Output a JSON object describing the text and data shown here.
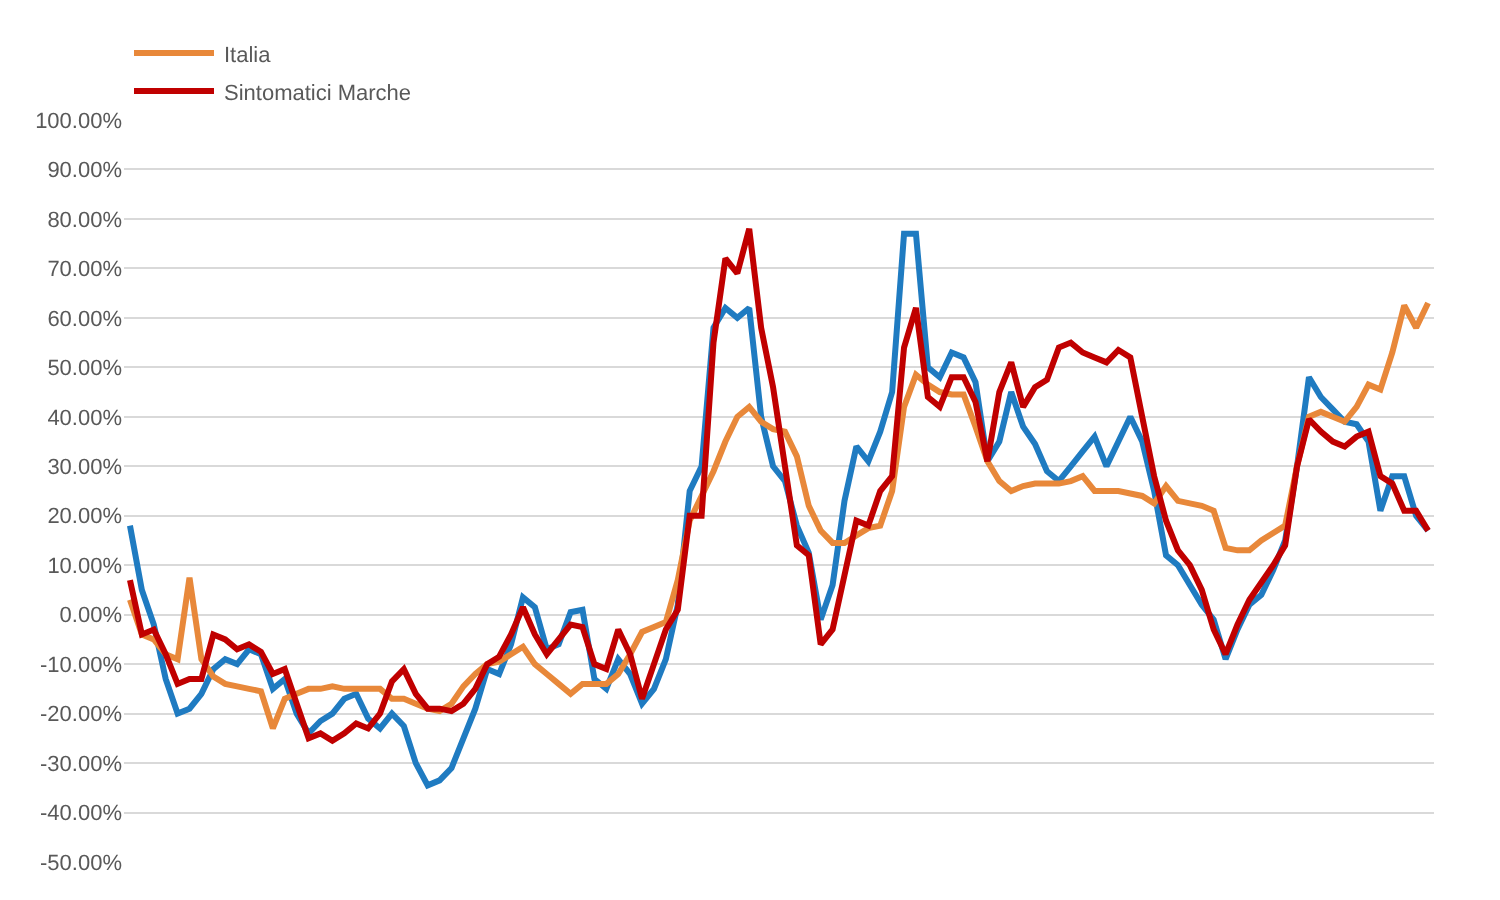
{
  "chart_data": {
    "type": "line",
    "categories": [
      null,
      null,
      null,
      null,
      null,
      null,
      null,
      null,
      null,
      null,
      null,
      null,
      null,
      null,
      null,
      null,
      null,
      null,
      null,
      null,
      null,
      null,
      null,
      null,
      null,
      null,
      null,
      null,
      null,
      null,
      null,
      null,
      null,
      null,
      null,
      null,
      null,
      null,
      null,
      null,
      null,
      null,
      null,
      null,
      null,
      null,
      null,
      null,
      null,
      null,
      null,
      null,
      null,
      null,
      null,
      null,
      null,
      null,
      null,
      null,
      null,
      null,
      null,
      null,
      null,
      null,
      null,
      null,
      null,
      null,
      null,
      null,
      null,
      null,
      null,
      null,
      null,
      null,
      null,
      null,
      null,
      null,
      null,
      null,
      null,
      null,
      null,
      null,
      null,
      null,
      null,
      null,
      null,
      null,
      null,
      null,
      null,
      null,
      null,
      null,
      null,
      null,
      null,
      null,
      null,
      null,
      null,
      null,
      null,
      null
    ],
    "series": [
      {
        "color": "#1f7bc1",
        "values": [
          18,
          5,
          -2,
          -13,
          -20,
          -19,
          -16,
          -11,
          -9,
          -10,
          -7,
          -8,
          -15,
          -13,
          -20,
          -24,
          -21.5,
          -20,
          -17,
          -16,
          -21,
          -23,
          -20,
          -22.5,
          -30,
          -34.5,
          -33.5,
          -31,
          -25,
          -19,
          -11,
          -12,
          -6,
          3.5,
          1.5,
          -7,
          -6,
          0.5,
          1,
          -13,
          -15,
          -9,
          -12,
          -18,
          -15,
          -9,
          2,
          25,
          30,
          58,
          62,
          60,
          62,
          40,
          30,
          27,
          18,
          12.5,
          -1,
          6,
          23,
          34,
          31,
          37,
          45,
          77,
          77,
          50,
          48,
          53,
          52,
          47,
          31,
          35,
          45,
          38,
          34.5,
          29,
          27,
          30,
          33,
          36,
          30,
          35,
          40,
          35,
          25,
          12,
          10,
          6,
          2,
          -1,
          -9,
          -3,
          2,
          4,
          9,
          15,
          30,
          48,
          44,
          41.5,
          39,
          38.5,
          35,
          21,
          28,
          28,
          20,
          17
        ]
      },
      {
        "name": "Italia",
        "color": "#e8883a",
        "values": [
          3,
          -4,
          -5,
          -8,
          -9,
          7.5,
          -9,
          -12.5,
          -14,
          -14.5,
          -15,
          -15.5,
          -23,
          -17,
          -16,
          -15,
          -15,
          -14.5,
          -15,
          -15,
          -15,
          -15,
          -17,
          -17,
          -18,
          -19,
          -19.5,
          -18,
          -14.5,
          -12,
          -10,
          -9.5,
          -8,
          -6.5,
          -10,
          -12,
          -14,
          -16,
          -14,
          -14,
          -14,
          -12,
          -8,
          -3.5,
          -2.5,
          -1.5,
          7,
          19,
          24,
          29,
          35,
          40,
          42,
          39,
          37.5,
          37,
          32,
          22,
          17,
          14.5,
          14.5,
          16,
          17.5,
          18,
          25,
          42,
          48.5,
          46.5,
          45,
          44.5,
          44.5,
          38,
          31,
          27,
          25,
          26,
          26.5,
          26.5,
          26.5,
          27,
          28,
          25,
          25,
          25,
          24.5,
          24,
          22.5,
          26,
          23,
          22.5,
          22,
          21,
          13.5,
          13,
          13,
          15,
          16.5,
          18,
          30,
          40,
          41,
          40,
          39,
          42,
          46.5,
          45.5,
          53,
          62.5,
          58,
          63
        ]
      },
      {
        "name": "Sintomatici Marche",
        "color": "#c00000",
        "values": [
          7,
          -4,
          -3,
          -8,
          -14,
          -13,
          -13,
          -4,
          -5,
          -7,
          -6,
          -7.5,
          -12,
          -11,
          -18,
          -25,
          -24,
          -25.5,
          -24,
          -22,
          -23,
          -20,
          -13.5,
          -11,
          -16,
          -19,
          -19,
          -19.5,
          -18,
          -15,
          -10,
          -8.5,
          -4,
          1.5,
          -4,
          -8,
          -5,
          -2,
          -2.5,
          -10,
          -11,
          -3,
          -8,
          -17,
          -10,
          -3,
          1,
          20,
          20,
          55,
          72,
          69,
          78,
          58,
          46,
          30,
          14,
          12,
          -6,
          -3,
          8,
          19,
          18,
          25,
          28,
          54,
          62,
          44,
          42,
          48,
          48,
          43,
          31,
          45,
          51,
          42,
          46,
          47.5,
          54,
          55,
          53,
          52,
          51,
          53.5,
          52,
          40,
          28,
          19,
          13,
          10,
          5,
          -3,
          -8,
          -2,
          3,
          6.5,
          10,
          14,
          30,
          39.5,
          37,
          35,
          34,
          36,
          37,
          28,
          26.5,
          21,
          21,
          17
        ]
      }
    ],
    "ylim": [
      -50,
      100
    ],
    "yticks": [
      {
        "value": -50,
        "label": "-50.00%"
      },
      {
        "value": -40,
        "label": "-40.00%"
      },
      {
        "value": -30,
        "label": "-30.00%"
      },
      {
        "value": -20,
        "label": "-20.00%"
      },
      {
        "value": -10,
        "label": "-10.00%"
      },
      {
        "value": 0,
        "label": "0.00%"
      },
      {
        "value": 10,
        "label": "10.00%"
      },
      {
        "value": 20,
        "label": "20.00%"
      },
      {
        "value": 30,
        "label": "30.00%"
      },
      {
        "value": 40,
        "label": "40.00%"
      },
      {
        "value": 50,
        "label": "50.00%"
      },
      {
        "value": 60,
        "label": "60.00%"
      },
      {
        "value": 70,
        "label": "70.00%"
      },
      {
        "value": 80,
        "label": "80.00%"
      },
      {
        "value": 90,
        "label": "90.00%"
      },
      {
        "value": 100,
        "label": "100.00%"
      }
    ],
    "grid": "y",
    "legend": "top left",
    "marker": "none",
    "line_style": "solid"
  }
}
